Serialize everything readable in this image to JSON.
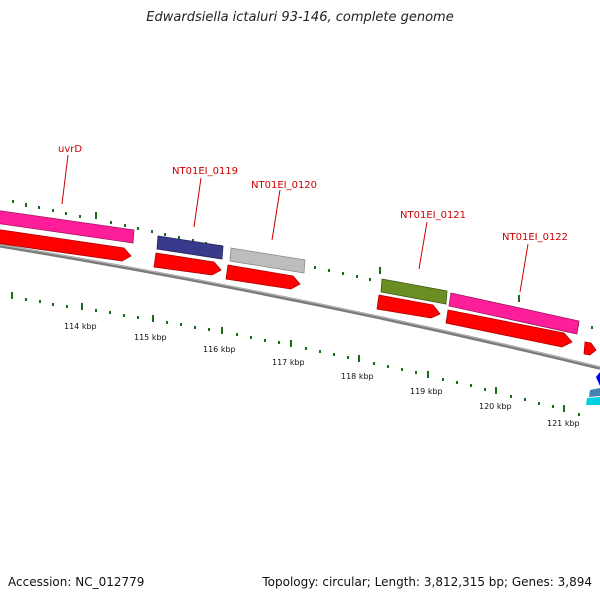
{
  "title": "Edwardsiella ictaluri 93-146, complete genome",
  "footer": {
    "accession": "Accession: NC_012779",
    "stats": "Topology: circular; Length: 3,812,315 bp; Genes: 3,894"
  },
  "gene_labels": [
    {
      "id": "uvrD",
      "text": "uvrD"
    },
    {
      "id": "nt0119",
      "text": "NT01EI_0119"
    },
    {
      "id": "nt0120",
      "text": "NT01EI_0120"
    },
    {
      "id": "nt0121",
      "text": "NT01EI_0121"
    },
    {
      "id": "nt0122",
      "text": "NT01EI_0122"
    }
  ],
  "kbp_ticks": [
    "114 kbp",
    "115 kbp",
    "116 kbp",
    "117 kbp",
    "118 kbp",
    "119 kbp",
    "120 kbp",
    "121 kbp"
  ],
  "colors": {
    "cds_forward": "#ff0000",
    "track_magenta": "#ff1e9a",
    "track_navy": "#3a3a8c",
    "track_gray": "#bdbdbd",
    "track_olive": "#6b8e23",
    "backbone": "#808080",
    "tick_green": "#1a6b1a",
    "label_red": "#cc0000"
  }
}
